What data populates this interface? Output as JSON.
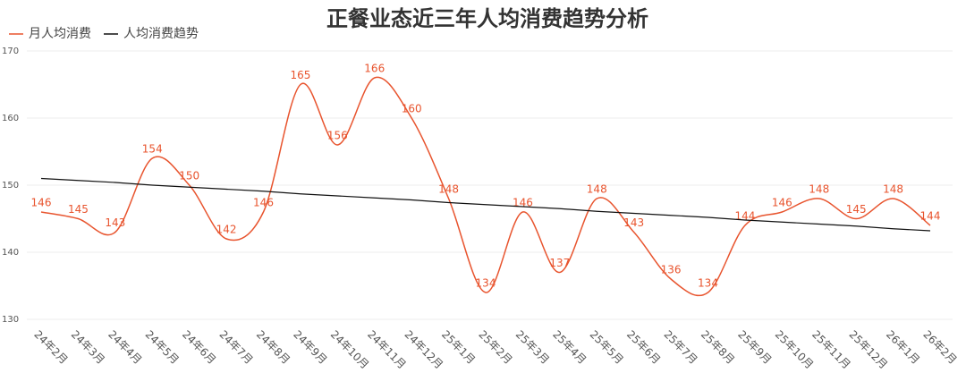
{
  "chart_data": {
    "type": "line",
    "title": "正餐业态近三年人均消费趋势分析",
    "categories": [
      "24年2月",
      "24年3月",
      "24年4月",
      "24年5月",
      "24年6月",
      "24年7月",
      "24年8月",
      "24年9月",
      "24年10月",
      "24年11月",
      "24年12月",
      "25年1月",
      "25年2月",
      "25年3月",
      "25年4月",
      "25年5月",
      "25年6月",
      "25年7月",
      "25年8月",
      "25年9月",
      "25年10月",
      "25年11月",
      "25年12月",
      "26年1月",
      "26年2月"
    ],
    "series": [
      {
        "name": "月人均消费",
        "color": "#e8542e",
        "smooth": true,
        "data_labels": true,
        "values": [
          146,
          145,
          143,
          154,
          150,
          142,
          146,
          165,
          156,
          166,
          160,
          148,
          134,
          146,
          137,
          148,
          143,
          136,
          134,
          144,
          146,
          148,
          145,
          148,
          144
        ]
      },
      {
        "name": "人均消费趋势",
        "color": "#111111",
        "smooth": false,
        "data_labels": false,
        "values": [
          151,
          150.7,
          150.4,
          150.0,
          149.7,
          149.4,
          149.1,
          148.7,
          148.4,
          148.1,
          147.8,
          147.4,
          147.1,
          146.8,
          146.5,
          146.1,
          145.8,
          145.5,
          145.2,
          144.8,
          144.5,
          144.2,
          143.9,
          143.5,
          143.2
        ]
      }
    ],
    "ylim": [
      130,
      170
    ],
    "yticks": [
      130,
      140,
      150,
      160,
      170
    ],
    "grid": true,
    "legend": "top-left"
  }
}
